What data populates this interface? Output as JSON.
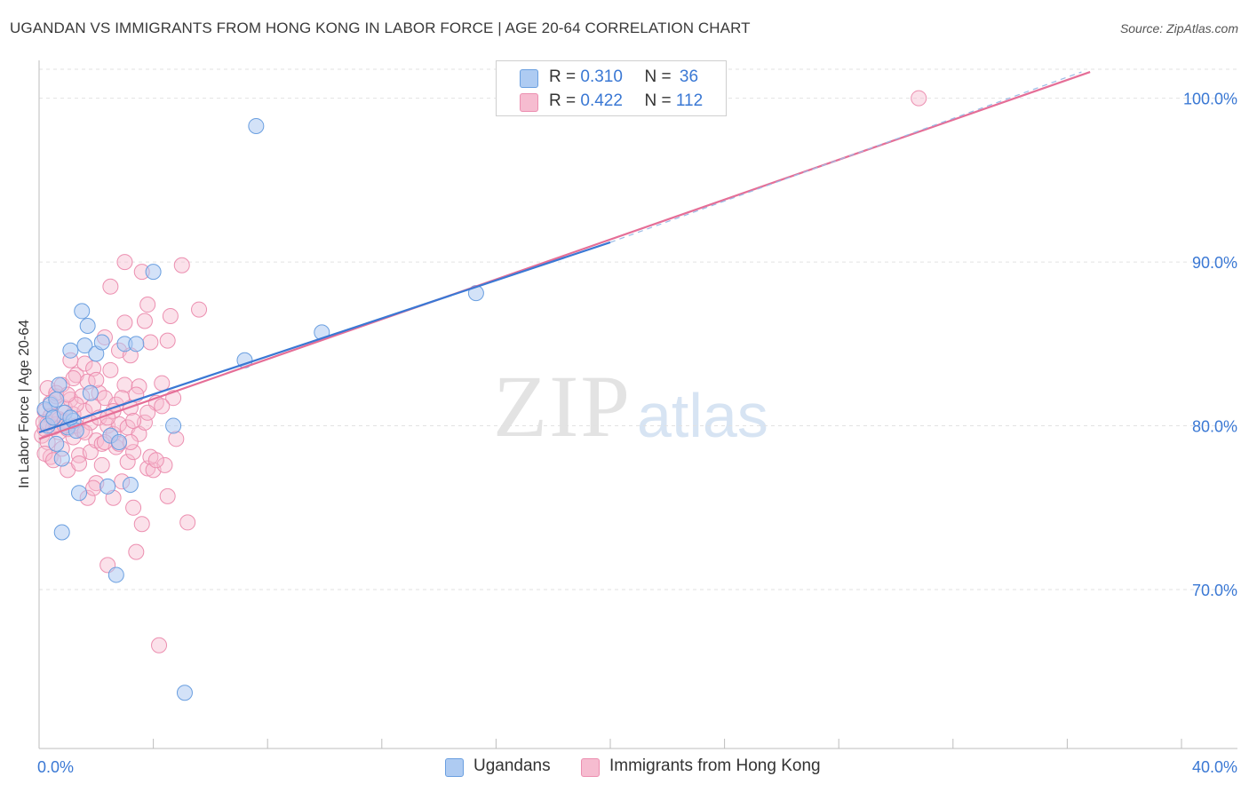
{
  "title": "UGANDAN VS IMMIGRANTS FROM HONG KONG IN LABOR FORCE | AGE 20-64 CORRELATION CHART",
  "source": "Source: ZipAtlas.com",
  "watermark": {
    "part1": "ZIP",
    "part2": "atlas"
  },
  "legend_top": [
    {
      "r_label": "R =",
      "r_value": "0.310",
      "n_label": "N =",
      "n_value": "36"
    },
    {
      "r_label": "R =",
      "r_value": "0.422",
      "n_label": "N =",
      "n_value": "112"
    }
  ],
  "legend_bottom": [
    "Ugandans",
    "Immigrants from Hong Kong"
  ],
  "colors": {
    "ugandans_fill": "#aecbf2",
    "ugandans_stroke": "#6a9fe0",
    "ugandans_line": "#3a78d4",
    "hongkong_fill": "#f6bcd0",
    "hongkong_stroke": "#ec8fb0",
    "hongkong_line": "#e56e97",
    "tick_label": "#3a78d4",
    "grid": "#e2e2e2"
  },
  "chart_data": {
    "type": "scatter",
    "title": "UGANDAN VS IMMIGRANTS FROM HONG KONG IN LABOR FORCE | AGE 20-64 CORRELATION CHART",
    "xlabel": "",
    "ylabel": "In Labor Force | Age 20-64",
    "xlim": [
      0,
      40
    ],
    "ylim": [
      60.3,
      102.2
    ],
    "x_tick_labels": [
      "0.0%",
      "40.0%"
    ],
    "y_ticks": [
      70,
      80,
      90,
      100
    ],
    "y_tick_labels": [
      "70.0%",
      "80.0%",
      "90.0%",
      "100.0%"
    ],
    "grid": true,
    "legend_position": "top-center",
    "series": [
      {
        "name": "Ugandans",
        "r": 0.31,
        "n": 36,
        "trend": {
          "x0": 0,
          "y0": 79.6,
          "x1": 20,
          "y1": 91.2,
          "dashed_extension_to": [
            36.5,
            101.6
          ]
        },
        "points": [
          [
            0.2,
            81.0
          ],
          [
            0.3,
            80.0
          ],
          [
            0.4,
            81.3
          ],
          [
            0.5,
            80.5
          ],
          [
            0.6,
            81.6
          ],
          [
            0.7,
            82.5
          ],
          [
            0.8,
            78.0
          ],
          [
            0.9,
            80.8
          ],
          [
            1.0,
            79.9
          ],
          [
            1.1,
            84.6
          ],
          [
            1.2,
            80.3
          ],
          [
            1.3,
            79.7
          ],
          [
            1.4,
            75.9
          ],
          [
            1.5,
            87.0
          ],
          [
            1.6,
            84.9
          ],
          [
            1.7,
            86.1
          ],
          [
            1.8,
            82.0
          ],
          [
            2.0,
            84.4
          ],
          [
            2.2,
            85.1
          ],
          [
            2.4,
            76.3
          ],
          [
            2.5,
            79.4
          ],
          [
            2.7,
            70.9
          ],
          [
            2.8,
            79.0
          ],
          [
            3.0,
            85.0
          ],
          [
            3.2,
            76.4
          ],
          [
            3.4,
            85.0
          ],
          [
            4.0,
            89.4
          ],
          [
            4.7,
            80.0
          ],
          [
            5.1,
            63.7
          ],
          [
            7.2,
            84.0
          ],
          [
            7.6,
            98.3
          ],
          [
            9.9,
            85.7
          ],
          [
            15.3,
            88.1
          ],
          [
            0.8,
            73.5
          ],
          [
            0.6,
            78.9
          ],
          [
            1.1,
            80.5
          ]
        ]
      },
      {
        "name": "Immigrants from Hong Kong",
        "r": 0.422,
        "n": 112,
        "trend": {
          "x0": 0,
          "y0": 79.2,
          "x1": 36.8,
          "y1": 101.6
        },
        "points": [
          [
            0.1,
            79.4
          ],
          [
            0.2,
            80.9
          ],
          [
            0.2,
            79.8
          ],
          [
            0.3,
            82.3
          ],
          [
            0.3,
            80.2
          ],
          [
            0.4,
            81.4
          ],
          [
            0.4,
            78.1
          ],
          [
            0.5,
            80.6
          ],
          [
            0.5,
            79.9
          ],
          [
            0.6,
            81.8
          ],
          [
            0.6,
            80.1
          ],
          [
            0.7,
            80.4
          ],
          [
            0.7,
            79.6
          ],
          [
            0.8,
            82.5
          ],
          [
            0.8,
            78.6
          ],
          [
            0.9,
            81.1
          ],
          [
            0.9,
            80.3
          ],
          [
            1.0,
            79.8
          ],
          [
            1.0,
            77.3
          ],
          [
            1.1,
            81.6
          ],
          [
            1.2,
            80.7
          ],
          [
            1.2,
            79.3
          ],
          [
            1.3,
            83.1
          ],
          [
            1.3,
            80.0
          ],
          [
            1.4,
            78.2
          ],
          [
            1.5,
            81.8
          ],
          [
            1.5,
            79.7
          ],
          [
            1.6,
            83.8
          ],
          [
            1.6,
            80.9
          ],
          [
            1.7,
            75.6
          ],
          [
            1.7,
            82.7
          ],
          [
            1.8,
            80.2
          ],
          [
            1.8,
            78.4
          ],
          [
            1.9,
            83.5
          ],
          [
            1.9,
            81.2
          ],
          [
            2.0,
            79.1
          ],
          [
            2.0,
            76.5
          ],
          [
            2.1,
            82.0
          ],
          [
            2.1,
            80.5
          ],
          [
            2.2,
            78.9
          ],
          [
            2.2,
            77.6
          ],
          [
            2.3,
            85.4
          ],
          [
            2.3,
            81.7
          ],
          [
            2.4,
            80.0
          ],
          [
            2.4,
            71.5
          ],
          [
            2.5,
            88.5
          ],
          [
            2.5,
            83.4
          ],
          [
            2.6,
            79.5
          ],
          [
            2.6,
            75.6
          ],
          [
            2.7,
            81.3
          ],
          [
            2.7,
            78.7
          ],
          [
            2.8,
            84.6
          ],
          [
            2.8,
            80.1
          ],
          [
            2.9,
            76.6
          ],
          [
            3.0,
            90.0
          ],
          [
            3.0,
            86.3
          ],
          [
            3.0,
            82.5
          ],
          [
            3.1,
            79.9
          ],
          [
            3.1,
            77.8
          ],
          [
            3.2,
            84.3
          ],
          [
            3.2,
            81.1
          ],
          [
            3.3,
            75.0
          ],
          [
            3.3,
            78.4
          ],
          [
            3.4,
            72.3
          ],
          [
            3.5,
            82.4
          ],
          [
            3.5,
            79.5
          ],
          [
            3.6,
            89.4
          ],
          [
            3.6,
            74.0
          ],
          [
            3.7,
            86.4
          ],
          [
            3.7,
            80.2
          ],
          [
            3.8,
            87.4
          ],
          [
            3.8,
            77.4
          ],
          [
            3.9,
            85.1
          ],
          [
            4.0,
            77.3
          ],
          [
            4.1,
            81.4
          ],
          [
            4.2,
            66.6
          ],
          [
            4.3,
            82.6
          ],
          [
            4.4,
            77.6
          ],
          [
            4.5,
            85.2
          ],
          [
            4.5,
            75.7
          ],
          [
            4.6,
            86.7
          ],
          [
            4.7,
            81.7
          ],
          [
            5.0,
            89.8
          ],
          [
            5.2,
            74.1
          ],
          [
            5.6,
            87.1
          ],
          [
            0.3,
            79.0
          ],
          [
            0.6,
            82.0
          ],
          [
            1.1,
            84.0
          ],
          [
            1.4,
            77.7
          ],
          [
            1.9,
            76.2
          ],
          [
            2.3,
            79.0
          ],
          [
            2.6,
            80.9
          ],
          [
            2.9,
            81.7
          ],
          [
            3.3,
            80.3
          ],
          [
            3.9,
            78.1
          ],
          [
            4.1,
            77.9
          ],
          [
            0.4,
            80.6
          ],
          [
            0.9,
            80.0
          ],
          [
            1.3,
            81.3
          ],
          [
            1.6,
            79.6
          ],
          [
            2.0,
            82.8
          ],
          [
            2.4,
            80.5
          ],
          [
            2.8,
            78.9
          ],
          [
            3.2,
            79.0
          ],
          [
            3.4,
            81.9
          ],
          [
            3.8,
            80.8
          ],
          [
            4.3,
            81.2
          ],
          [
            4.8,
            79.2
          ],
          [
            0.2,
            78.3
          ],
          [
            0.5,
            77.9
          ],
          [
            1.0,
            81.9
          ],
          [
            1.2,
            82.9
          ],
          [
            30.8,
            100.0
          ],
          [
            0.15,
            80.2
          ]
        ]
      }
    ]
  }
}
